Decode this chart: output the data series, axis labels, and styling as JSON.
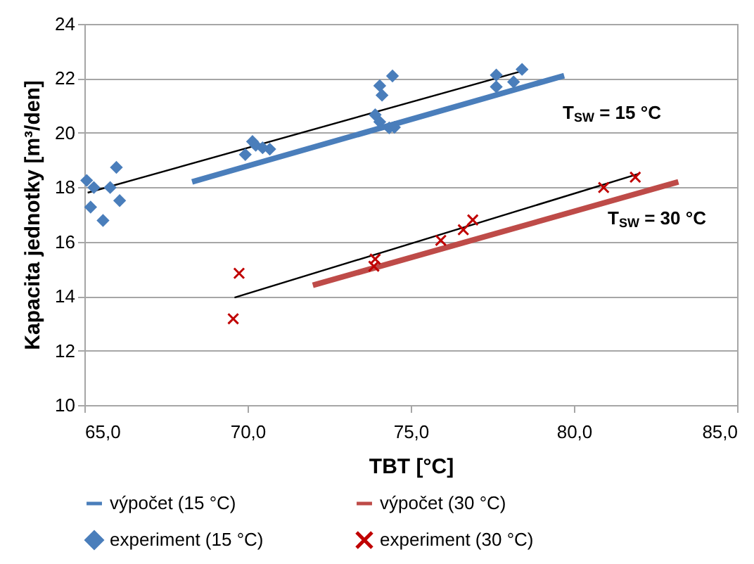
{
  "chart_data": {
    "type": "scatter",
    "xlabel": "TBT [°C]",
    "ylabel": "Kapacita jednotky  [m³/den]",
    "xlim": [
      65,
      85
    ],
    "xticks": [
      {
        "value": 65,
        "label": "65,0"
      },
      {
        "value": 70,
        "label": "70,0"
      },
      {
        "value": 75,
        "label": "75,0"
      },
      {
        "value": 80,
        "label": "80,0"
      },
      {
        "value": 85,
        "label": "85,0"
      }
    ],
    "ylim": [
      10,
      24
    ],
    "yticks": [
      10,
      12,
      14,
      16,
      18,
      20,
      22,
      24
    ],
    "grid": "y",
    "legend": "bottom",
    "annotations": [
      "T$_{SW}$ = 15 °C",
      "T$_{SW}$ = 30 °C"
    ],
    "series": [
      {
        "name": "výpočet (15 °C)",
        "type": "line",
        "marker": "none",
        "color": "#4a7ebb",
        "x": [
          68.3,
          79.7
        ],
        "values": [
          18.2,
          22.1
        ]
      },
      {
        "name": "výpočet (30 °C)",
        "type": "line",
        "marker": "none",
        "color": "#be4b48",
        "x": [
          72.0,
          83.2
        ],
        "values": [
          14.4,
          18.2
        ]
      },
      {
        "name": "experiment (15 °C)",
        "marker": "diamond",
        "color": "#4a7ebb",
        "x": [
          65.07,
          65.29,
          65.19,
          65.57,
          65.79,
          65.98,
          66.08,
          69.93,
          70.15,
          70.25,
          70.46,
          70.68,
          73.91,
          74.05,
          74.12,
          74.44,
          74.05,
          74.34,
          74.5,
          77.62,
          77.62,
          78.15,
          78.41
        ],
        "values": [
          18.25,
          17.99,
          17.27,
          16.78,
          17.99,
          18.73,
          17.51,
          19.2,
          19.68,
          19.54,
          19.45,
          19.4,
          20.66,
          21.73,
          21.38,
          22.09,
          20.4,
          20.18,
          20.2,
          22.12,
          21.69,
          21.87,
          22.33
        ]
      },
      {
        "name": "experiment (30 °C)",
        "marker": "cross",
        "color": "#c00000",
        "x": [
          69.74,
          69.56,
          73.91,
          73.87,
          75.92,
          76.61,
          76.9,
          80.91,
          81.88
        ],
        "values": [
          14.84,
          13.17,
          15.36,
          15.1,
          16.05,
          16.44,
          16.8,
          17.99,
          18.37
        ]
      },
      {
        "type": "line",
        "marker": "none",
        "color": "#000000",
        "x": [
          65.1,
          78.5
        ],
        "values": [
          17.8,
          22.3
        ]
      },
      {
        "type": "line",
        "marker": "none",
        "color": "#000000",
        "x": [
          69.6,
          82.0
        ],
        "values": [
          13.95,
          18.5
        ]
      }
    ]
  }
}
